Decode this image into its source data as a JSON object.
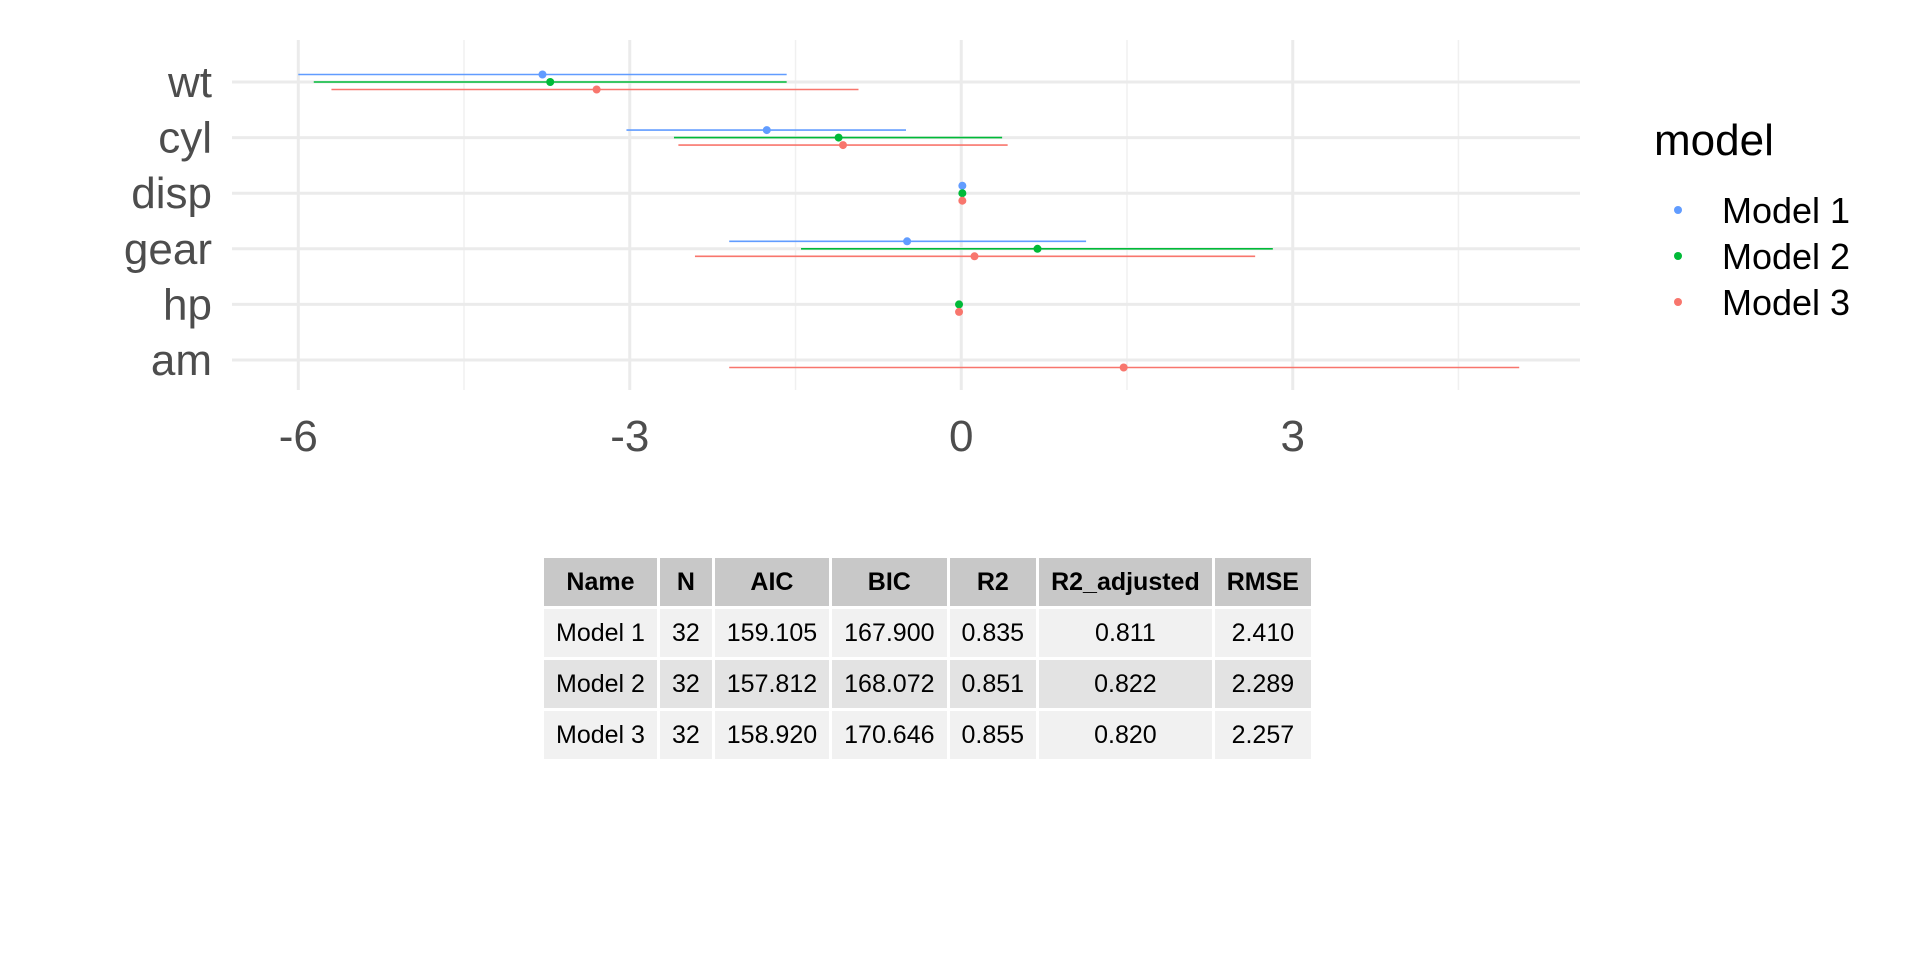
{
  "chart_data": {
    "type": "scatter",
    "subtype": "coefficient-plot-with-confidence-intervals",
    "categories": [
      "wt",
      "cyl",
      "disp",
      "gear",
      "hp",
      "am"
    ],
    "x_ticks": [
      -6,
      -3,
      0,
      3
    ],
    "x_tick_labels": [
      "-6",
      "-3",
      "0",
      "3"
    ],
    "xlim": [
      -6.6,
      5.6
    ],
    "grid": true,
    "legend": {
      "title": "model",
      "position": "right"
    },
    "series": [
      {
        "name": "Model 1",
        "color": "#619cff",
        "points": [
          {
            "term": "wt",
            "estimate": -3.79,
            "low": -6.0,
            "high": -1.58
          },
          {
            "term": "cyl",
            "estimate": -1.76,
            "low": -3.03,
            "high": -0.5
          },
          {
            "term": "disp",
            "estimate": 0.01,
            "low": -0.01,
            "high": 0.03
          },
          {
            "term": "gear",
            "estimate": -0.49,
            "low": -2.1,
            "high": 1.13
          }
        ]
      },
      {
        "name": "Model 2",
        "color": "#00ba38",
        "points": [
          {
            "term": "wt",
            "estimate": -3.72,
            "low": -5.86,
            "high": -1.58
          },
          {
            "term": "cyl",
            "estimate": -1.11,
            "low": -2.6,
            "high": 0.37
          },
          {
            "term": "disp",
            "estimate": 0.01,
            "low": -0.01,
            "high": 0.03
          },
          {
            "term": "gear",
            "estimate": 0.69,
            "low": -1.45,
            "high": 2.82
          },
          {
            "term": "hp",
            "estimate": -0.02,
            "low": -0.05,
            "high": 0.01
          }
        ]
      },
      {
        "name": "Model 3",
        "color": "#f8766d",
        "points": [
          {
            "term": "wt",
            "estimate": -3.3,
            "low": -5.7,
            "high": -0.93
          },
          {
            "term": "cyl",
            "estimate": -1.07,
            "low": -2.56,
            "high": 0.42
          },
          {
            "term": "disp",
            "estimate": 0.01,
            "low": -0.01,
            "high": 0.03
          },
          {
            "term": "gear",
            "estimate": 0.12,
            "low": -2.41,
            "high": 2.66
          },
          {
            "term": "hp",
            "estimate": -0.02,
            "low": -0.05,
            "high": 0.01
          },
          {
            "term": "am",
            "estimate": 1.47,
            "low": -2.1,
            "high": 5.05
          }
        ]
      }
    ]
  },
  "table": {
    "headers": [
      "Name",
      "N",
      "AIC",
      "BIC",
      "R2",
      "R2_adjusted",
      "RMSE"
    ],
    "rows": [
      [
        "Model 1",
        "32",
        "159.105",
        "167.900",
        "0.835",
        "0.811",
        "2.410"
      ],
      [
        "Model 2",
        "32",
        "157.812",
        "168.072",
        "0.851",
        "0.822",
        "2.289"
      ],
      [
        "Model 3",
        "32",
        "158.920",
        "170.646",
        "0.855",
        "0.820",
        "2.257"
      ]
    ]
  }
}
